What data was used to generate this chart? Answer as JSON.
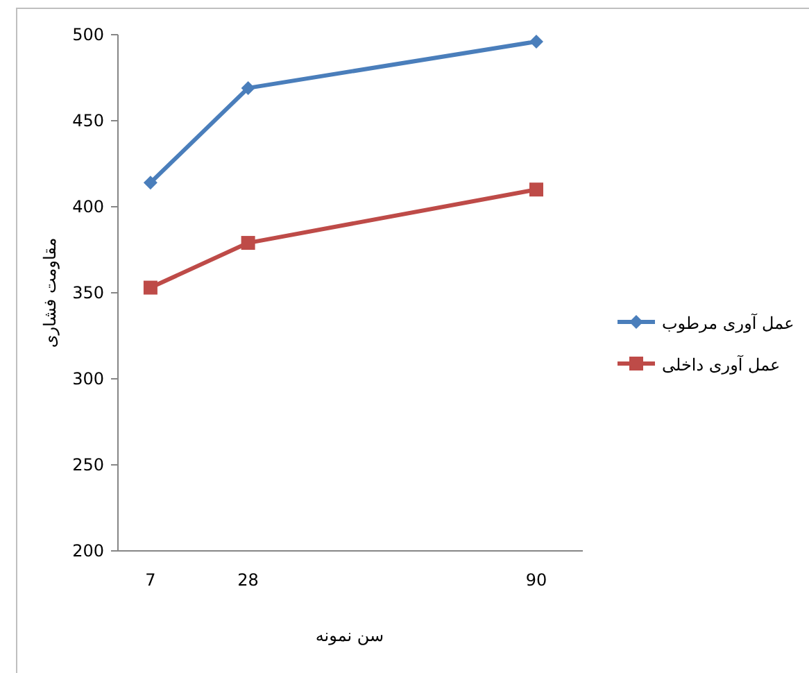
{
  "chart_data": {
    "type": "line",
    "xlabel": "سن نمونه",
    "ylabel": "مقاومت فشاری",
    "x": [
      7,
      28,
      90
    ],
    "series": [
      {
        "name": "عمل آوری مرطوب",
        "color": "#4a7ebb",
        "marker": "diamond",
        "values": [
          414,
          469,
          496
        ]
      },
      {
        "name": "عمل آوری داخلی",
        "color": "#be4b48",
        "marker": "square",
        "values": [
          353,
          379,
          410
        ]
      }
    ],
    "xlim": [
      0,
      100
    ],
    "xticks": [
      7,
      28,
      90
    ],
    "ylim": [
      200,
      500
    ],
    "yticks": [
      200,
      250,
      300,
      350,
      400,
      450,
      500
    ],
    "grid": false,
    "legend": "right"
  }
}
